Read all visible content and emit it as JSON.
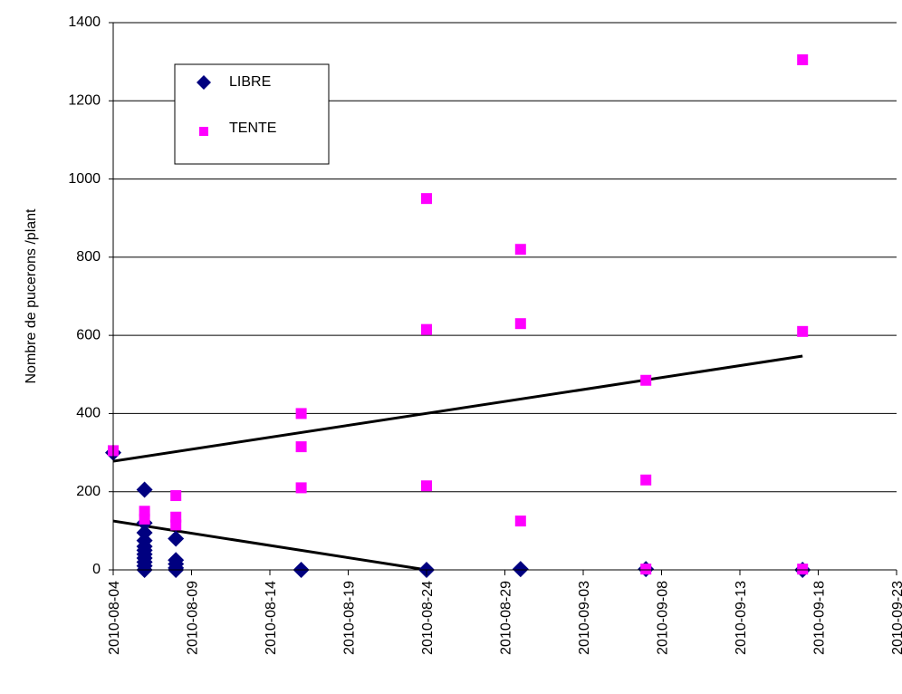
{
  "chart_data": {
    "type": "scatter",
    "title": "",
    "xlabel": "",
    "ylabel": "Nombre de pucerons /plant",
    "xlim": [
      "2010-08-04",
      "2010-09-23"
    ],
    "ylim": [
      0,
      1400
    ],
    "x_ticks": [
      "2010-08-04",
      "2010-08-09",
      "2010-08-14",
      "2010-08-19",
      "2010-08-24",
      "2010-08-29",
      "2010-09-03",
      "2010-09-08",
      "2010-09-13",
      "2010-09-18",
      "2010-09-23"
    ],
    "y_ticks": [
      0,
      200,
      400,
      600,
      800,
      1000,
      1200,
      1400
    ],
    "grid": "horizontal",
    "legend_position": "top-left",
    "series": [
      {
        "name": "LIBRE",
        "marker": "diamond",
        "color": "#000080",
        "points": [
          {
            "x": "2010-08-04",
            "y": 300
          },
          {
            "x": "2010-08-06",
            "y": 205
          },
          {
            "x": "2010-08-06",
            "y": 120
          },
          {
            "x": "2010-08-06",
            "y": 95
          },
          {
            "x": "2010-08-06",
            "y": 75
          },
          {
            "x": "2010-08-06",
            "y": 60
          },
          {
            "x": "2010-08-06",
            "y": 50
          },
          {
            "x": "2010-08-06",
            "y": 40
          },
          {
            "x": "2010-08-06",
            "y": 30
          },
          {
            "x": "2010-08-06",
            "y": 20
          },
          {
            "x": "2010-08-06",
            "y": 10
          },
          {
            "x": "2010-08-06",
            "y": 0
          },
          {
            "x": "2010-08-08",
            "y": 80
          },
          {
            "x": "2010-08-08",
            "y": 25
          },
          {
            "x": "2010-08-08",
            "y": 15
          },
          {
            "x": "2010-08-08",
            "y": 5
          },
          {
            "x": "2010-08-08",
            "y": 0
          },
          {
            "x": "2010-08-16",
            "y": 0
          },
          {
            "x": "2010-08-24",
            "y": 0
          },
          {
            "x": "2010-08-30",
            "y": 2
          },
          {
            "x": "2010-09-07",
            "y": 2
          },
          {
            "x": "2010-09-17",
            "y": 0
          }
        ]
      },
      {
        "name": "TENTE",
        "marker": "square",
        "color": "#FF00FF",
        "points": [
          {
            "x": "2010-08-04",
            "y": 305
          },
          {
            "x": "2010-08-06",
            "y": 150
          },
          {
            "x": "2010-08-06",
            "y": 130
          },
          {
            "x": "2010-08-08",
            "y": 190
          },
          {
            "x": "2010-08-08",
            "y": 135
          },
          {
            "x": "2010-08-08",
            "y": 115
          },
          {
            "x": "2010-08-16",
            "y": 400
          },
          {
            "x": "2010-08-16",
            "y": 315
          },
          {
            "x": "2010-08-16",
            "y": 210
          },
          {
            "x": "2010-08-24",
            "y": 950
          },
          {
            "x": "2010-08-24",
            "y": 615
          },
          {
            "x": "2010-08-24",
            "y": 215
          },
          {
            "x": "2010-08-30",
            "y": 820
          },
          {
            "x": "2010-08-30",
            "y": 630
          },
          {
            "x": "2010-08-30",
            "y": 125
          },
          {
            "x": "2010-09-07",
            "y": 485
          },
          {
            "x": "2010-09-07",
            "y": 230
          },
          {
            "x": "2010-09-07",
            "y": 2
          },
          {
            "x": "2010-09-17",
            "y": 1305
          },
          {
            "x": "2010-09-17",
            "y": 610
          },
          {
            "x": "2010-09-17",
            "y": 2
          }
        ]
      }
    ],
    "trendlines": [
      {
        "series": "LIBRE",
        "type": "linear",
        "color": "#000000",
        "from": {
          "x": "2010-08-04",
          "y": 125
        },
        "to": {
          "x": "2010-08-24",
          "y": 0
        }
      },
      {
        "series": "TENTE",
        "type": "linear",
        "color": "#000000",
        "from": {
          "x": "2010-08-04",
          "y": 278
        },
        "to": {
          "x": "2010-09-17",
          "y": 547
        }
      }
    ]
  }
}
